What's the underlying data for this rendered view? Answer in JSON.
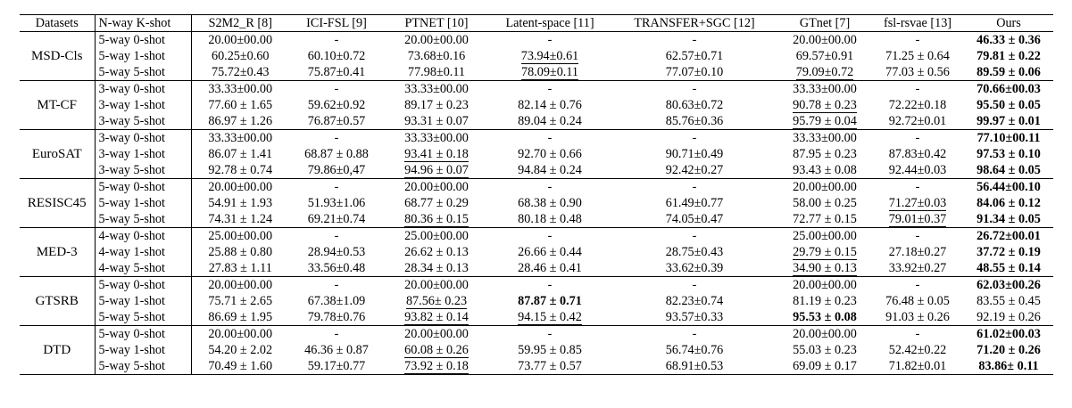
{
  "columns": [
    "Datasets",
    "N-way K-shot",
    "S2M2_R [8]",
    "ICI-FSL [9]",
    "PTNET [10]",
    "Latent-space [11]",
    "TRANSFER+SGC [12]",
    "GTnet [7]",
    "fsl-rsvae [13]",
    "Ours"
  ],
  "groups": [
    {
      "dataset": "MSD-Cls",
      "rows": [
        {
          "setting": "5-way 0-shot",
          "cells": [
            {
              "v": "20.00±00.00"
            },
            {
              "v": "-"
            },
            {
              "v": "20.00±00.00"
            },
            {
              "v": "-"
            },
            {
              "v": "-"
            },
            {
              "v": "20.00±00.00"
            },
            {
              "v": "-"
            },
            {
              "v": "46.33 ± 0.36",
              "s": "b"
            }
          ]
        },
        {
          "setting": "5-way 1-shot",
          "cells": [
            {
              "v": "60.25±0.60"
            },
            {
              "v": "60.10±0.72"
            },
            {
              "v": "73.68±0.16"
            },
            {
              "v": "73.94±0.61",
              "s": "u"
            },
            {
              "v": "62.57±0.71"
            },
            {
              "v": "69.57±0.91"
            },
            {
              "v": "71.25 ± 0.64"
            },
            {
              "v": "79.81 ± 0.22",
              "s": "b"
            }
          ]
        },
        {
          "setting": "5-way 5-shot",
          "cells": [
            {
              "v": "75.72±0.43"
            },
            {
              "v": "75.87±0.41"
            },
            {
              "v": "77.98±0.11"
            },
            {
              "v": "78.09±0.11",
              "s": "u"
            },
            {
              "v": "77.07±0.10"
            },
            {
              "v": "79.09±0.72",
              "s": "u"
            },
            {
              "v": "77.03 ± 0.56"
            },
            {
              "v": "89.59 ± 0.06",
              "s": "b"
            }
          ]
        }
      ]
    },
    {
      "dataset": "MT-CF",
      "rows": [
        {
          "setting": "3-way 0-shot",
          "cells": [
            {
              "v": "33.33±00.00"
            },
            {
              "v": "-"
            },
            {
              "v": "33.33±00.00"
            },
            {
              "v": "-"
            },
            {
              "v": "-"
            },
            {
              "v": "33.33±00.00"
            },
            {
              "v": "-"
            },
            {
              "v": "70.66±00.03",
              "s": "b"
            }
          ]
        },
        {
          "setting": "3-way 1-shot",
          "cells": [
            {
              "v": "77.60 ± 1.65"
            },
            {
              "v": "59.62±0.92"
            },
            {
              "v": "89.17 ± 0.23"
            },
            {
              "v": "82.14 ± 0.76"
            },
            {
              "v": "80.63±0.72"
            },
            {
              "v": "90.78 ± 0.23",
              "s": "u"
            },
            {
              "v": "72.22±0.18"
            },
            {
              "v": "95.50 ± 0.05",
              "s": "b"
            }
          ]
        },
        {
          "setting": "3-way 5-shot",
          "cells": [
            {
              "v": "86.97 ± 1.26"
            },
            {
              "v": "76.87±0.57"
            },
            {
              "v": "93.31 ± 0.07"
            },
            {
              "v": "89.04 ± 0.24"
            },
            {
              "v": "85.76±0.36"
            },
            {
              "v": "95.79 ± 0.04",
              "s": "u"
            },
            {
              "v": "92.72±0.01"
            },
            {
              "v": "99.97 ± 0.01",
              "s": "b"
            }
          ]
        }
      ]
    },
    {
      "dataset": "EuroSAT",
      "rows": [
        {
          "setting": "3-way 0-shot",
          "cells": [
            {
              "v": "33.33±00.00"
            },
            {
              "v": "-"
            },
            {
              "v": "33.33±00.00"
            },
            {
              "v": "-"
            },
            {
              "v": "-"
            },
            {
              "v": "33.33±00.00"
            },
            {
              "v": "-"
            },
            {
              "v": "77.10±00.11",
              "s": "b"
            }
          ]
        },
        {
          "setting": "3-way 1-shot",
          "cells": [
            {
              "v": "86.07 ± 1.41"
            },
            {
              "v": "68.87 ± 0.88"
            },
            {
              "v": "93.41 ± 0.18",
              "s": "u"
            },
            {
              "v": "92.70 ± 0.66"
            },
            {
              "v": "90.71±0.49"
            },
            {
              "v": "87.95 ± 0.23"
            },
            {
              "v": "87.83±0.42"
            },
            {
              "v": "97.53 ± 0.10",
              "s": "b"
            }
          ]
        },
        {
          "setting": "3-way 5-shot",
          "cells": [
            {
              "v": "92.78 ± 0.74"
            },
            {
              "v": "79.86±0,47"
            },
            {
              "v": "94.96 ± 0.07",
              "s": "u"
            },
            {
              "v": "94.84 ± 0.24"
            },
            {
              "v": "92.42±0.27"
            },
            {
              "v": "93.43 ± 0.08"
            },
            {
              "v": "92.44±0.03"
            },
            {
              "v": "98.64 ± 0.05",
              "s": "b"
            }
          ]
        }
      ]
    },
    {
      "dataset": "RESISC45",
      "rows": [
        {
          "setting": "5-way 0-shot",
          "cells": [
            {
              "v": "20.00±00.00"
            },
            {
              "v": "-"
            },
            {
              "v": "20.00±00.00"
            },
            {
              "v": "-"
            },
            {
              "v": "-"
            },
            {
              "v": "20.00±00.00"
            },
            {
              "v": "-"
            },
            {
              "v": "56.44±00.10",
              "s": "b"
            }
          ]
        },
        {
          "setting": "5-way 1-shot",
          "cells": [
            {
              "v": "54.91 ± 1.93"
            },
            {
              "v": "51.93±1.06"
            },
            {
              "v": "68.77 ± 0.29"
            },
            {
              "v": "68.38 ± 0.90"
            },
            {
              "v": "61.49±0.77"
            },
            {
              "v": "58.00 ± 0.25"
            },
            {
              "v": "71.27±0.03",
              "s": "u"
            },
            {
              "v": "84.06 ± 0.12",
              "s": "b"
            }
          ]
        },
        {
          "setting": "5-way 5-shot",
          "cells": [
            {
              "v": "74.31 ± 1.24"
            },
            {
              "v": "69.21±0.74"
            },
            {
              "v": "80.36 ± 0.15",
              "s": "u"
            },
            {
              "v": "80.18 ± 0.48"
            },
            {
              "v": "74.05±0.47"
            },
            {
              "v": "72.77 ± 0.15"
            },
            {
              "v": "79.01±0.37",
              "s": "u"
            },
            {
              "v": "91.34 ± 0.05",
              "s": "b"
            }
          ]
        }
      ]
    },
    {
      "dataset": "MED-3",
      "rows": [
        {
          "setting": "4-way 0-shot",
          "cells": [
            {
              "v": "25.00±00.00"
            },
            {
              "v": "-"
            },
            {
              "v": "25.00±00.00"
            },
            {
              "v": "-"
            },
            {
              "v": "-"
            },
            {
              "v": "25.00±00.00"
            },
            {
              "v": "-"
            },
            {
              "v": "26.72±00.01",
              "s": "b"
            }
          ]
        },
        {
          "setting": "4-way 1-shot",
          "cells": [
            {
              "v": "25.88 ± 0.80"
            },
            {
              "v": "28.94±0.53"
            },
            {
              "v": "26.62 ± 0.13"
            },
            {
              "v": "26.66 ± 0.44"
            },
            {
              "v": "28.75±0.43"
            },
            {
              "v": "29.79 ± 0.15",
              "s": "u"
            },
            {
              "v": "27.18±0.27"
            },
            {
              "v": "37.72 ± 0.19",
              "s": "b"
            }
          ]
        },
        {
          "setting": "4-way 5-shot",
          "cells": [
            {
              "v": "27.83 ± 1.11"
            },
            {
              "v": "33.56±0.48"
            },
            {
              "v": "28.34 ± 0.13"
            },
            {
              "v": "28.46 ± 0.41"
            },
            {
              "v": "33.62±0.39"
            },
            {
              "v": "34.90 ± 0.13",
              "s": "u"
            },
            {
              "v": "33.92±0.27"
            },
            {
              "v": "48.55 ± 0.14",
              "s": "b"
            }
          ]
        }
      ]
    },
    {
      "dataset": "GTSRB",
      "rows": [
        {
          "setting": "5-way 0-shot",
          "cells": [
            {
              "v": "20.00±00.00"
            },
            {
              "v": "-"
            },
            {
              "v": "20.00±00.00"
            },
            {
              "v": "-"
            },
            {
              "v": "-"
            },
            {
              "v": "20.00±00.00"
            },
            {
              "v": "-"
            },
            {
              "v": "62.03±00.26",
              "s": "b"
            }
          ]
        },
        {
          "setting": "5-way 1-shot",
          "cells": [
            {
              "v": "75.71 ± 2.65"
            },
            {
              "v": "67.38±1.09"
            },
            {
              "v": "87.56± 0.23",
              "s": "u"
            },
            {
              "v": "87.87 ± 0.71",
              "s": "b"
            },
            {
              "v": "82.23±0.74"
            },
            {
              "v": "81.19 ± 0.23"
            },
            {
              "v": "76.48 ± 0.05"
            },
            {
              "v": "83.55 ± 0.45"
            }
          ]
        },
        {
          "setting": "5-way 5-shot",
          "cells": [
            {
              "v": "86.69 ± 1.95"
            },
            {
              "v": "79.78±0.76"
            },
            {
              "v": "93.82 ± 0.14",
              "s": "u"
            },
            {
              "v": "94.15 ± 0.42",
              "s": "u"
            },
            {
              "v": "93.57±0.33"
            },
            {
              "v": "95.53 ± 0.08",
              "s": "b"
            },
            {
              "v": "91.03 ± 0.26"
            },
            {
              "v": "92.19 ± 0.26"
            }
          ]
        }
      ]
    },
    {
      "dataset": "DTD",
      "rows": [
        {
          "setting": "5-way 0-shot",
          "cells": [
            {
              "v": "20.00±00.00"
            },
            {
              "v": "-"
            },
            {
              "v": "20.00±00.00"
            },
            {
              "v": "-"
            },
            {
              "v": "-"
            },
            {
              "v": "20.00±00.00"
            },
            {
              "v": "-"
            },
            {
              "v": "61.02±00.03",
              "s": "b"
            }
          ]
        },
        {
          "setting": "5-way 1-shot",
          "cells": [
            {
              "v": "54.20 ± 2.02"
            },
            {
              "v": "46.36 ± 0.87"
            },
            {
              "v": "60.08 ± 0.26",
              "s": "u"
            },
            {
              "v": "59.95 ± 0.85"
            },
            {
              "v": "56.74±0.76"
            },
            {
              "v": "55.03 ± 0.23"
            },
            {
              "v": "52.42±0.22"
            },
            {
              "v": "71.20 ± 0.26",
              "s": "b"
            }
          ]
        },
        {
          "setting": "5-way 5-shot",
          "cells": [
            {
              "v": "70.49 ± 1.60"
            },
            {
              "v": "59.17±0.77"
            },
            {
              "v": "73.92 ± 0.18",
              "s": "u"
            },
            {
              "v": "73.77 ± 0.57"
            },
            {
              "v": "68.91±0.53"
            },
            {
              "v": "69.09 ± 0.17"
            },
            {
              "v": "71.82±0.01"
            },
            {
              "v": "83.86± 0.11",
              "s": "b"
            }
          ]
        }
      ]
    }
  ]
}
